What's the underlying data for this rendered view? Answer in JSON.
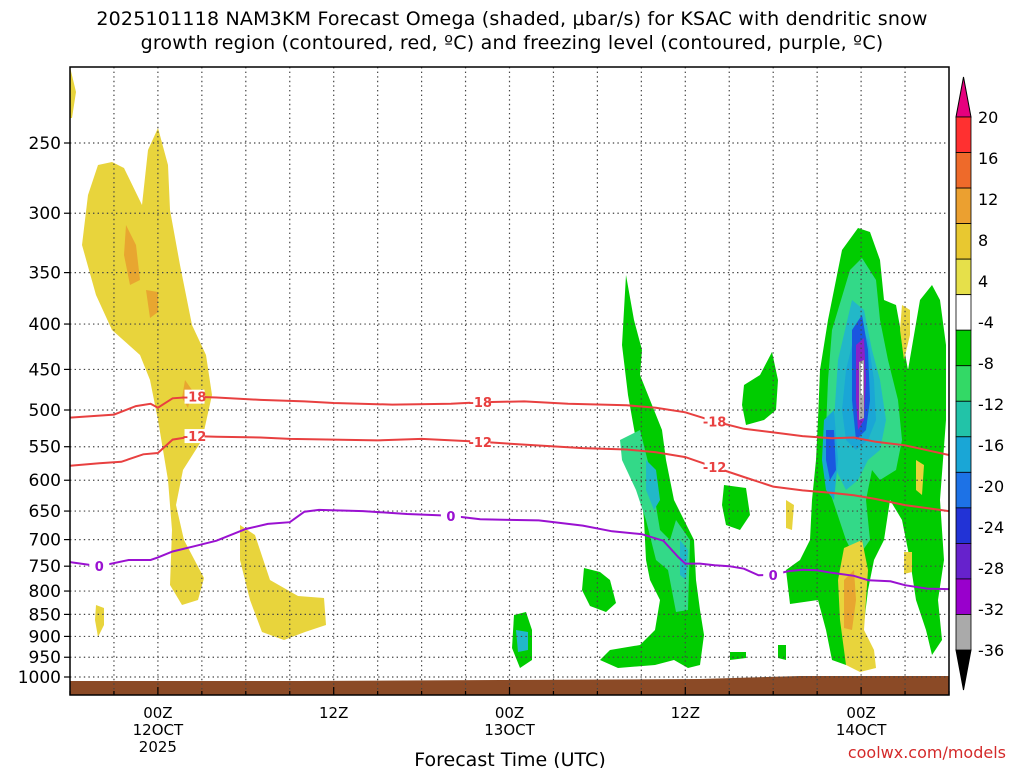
{
  "title": {
    "line1": "2025101118 NAM3KM Forecast Omega (shaded, μbar/s) for KSAC with dendritic snow",
    "line2": "growth region (contoured, red, ºC) and freezing level (contoured, purple, ºC)"
  },
  "credit": "coolwx.com/models",
  "chart_data": {
    "type": "time-height cross section",
    "title": "2025101118 NAM3KM Forecast Omega (shaded, μbar/s) for KSAC with dendritic snow growth region (contoured, red, ºC) and freezing level (contoured, purple, ºC)",
    "xlabel": "Forecast Time (UTC)",
    "ylabel": "",
    "x_range": [
      "2025-10-11 18Z",
      "2025-10-14 06Z"
    ],
    "y_scale": "log",
    "y_range": [
      1025,
      200
    ],
    "grid": true,
    "x_ticks": [
      {
        "hour": 6,
        "line1": "00Z",
        "line2": "12OCT",
        "line3": "2025"
      },
      {
        "hour": 18,
        "line1": "12Z",
        "line2": "",
        "line3": ""
      },
      {
        "hour": 30,
        "line1": "00Z",
        "line2": "13OCT",
        "line3": ""
      },
      {
        "hour": 42,
        "line1": "12Z",
        "line2": "",
        "line3": ""
      },
      {
        "hour": 54,
        "line1": "00Z",
        "line2": "14OCT",
        "line3": ""
      }
    ],
    "y_ticks": [
      250,
      300,
      350,
      400,
      450,
      500,
      550,
      600,
      650,
      700,
      750,
      800,
      850,
      900,
      950,
      1000
    ],
    "colorbar": {
      "labels": [
        20,
        16,
        12,
        8,
        4,
        -4,
        -8,
        -12,
        -16,
        -20,
        -24,
        -28,
        -32,
        -36
      ],
      "colors": [
        "#e6007e",
        "#ff3030",
        "#ee6a2a",
        "#eba030",
        "#e8c830",
        "#e6e04a",
        "#ffffff",
        "#00cc00",
        "#33d966",
        "#22c3a8",
        "#1aa6d6",
        "#1d72e6",
        "#2233d6",
        "#6622cc",
        "#9900cc",
        "#aaaaaa",
        "#000000"
      ]
    },
    "series": [
      {
        "name": "-18",
        "color": "#e84040",
        "points": [
          [
            0,
            510
          ],
          [
            3,
            506
          ],
          [
            4.5,
            495
          ],
          [
            5.5,
            492
          ],
          [
            6,
            497
          ],
          [
            7,
            485
          ],
          [
            8.5,
            483
          ],
          [
            10,
            484
          ],
          [
            13,
            487
          ],
          [
            16,
            489
          ],
          [
            18,
            491
          ],
          [
            22,
            493
          ],
          [
            26,
            492
          ],
          [
            28,
            490
          ],
          [
            31,
            489
          ],
          [
            34,
            492
          ],
          [
            38,
            494
          ],
          [
            40,
            497
          ],
          [
            42,
            503
          ],
          [
            44,
            515
          ],
          [
            46,
            525
          ],
          [
            48,
            530
          ],
          [
            50,
            535
          ],
          [
            52,
            538
          ],
          [
            53.5,
            537
          ],
          [
            55,
            543
          ],
          [
            57,
            548
          ],
          [
            60,
            562
          ]
        ]
      },
      {
        "name": "-12",
        "color": "#e84040",
        "points": [
          [
            0,
            578
          ],
          [
            2,
            574
          ],
          [
            3.5,
            572
          ],
          [
            5,
            561
          ],
          [
            6,
            559
          ],
          [
            7,
            540
          ],
          [
            8.5,
            535
          ],
          [
            10,
            536
          ],
          [
            13,
            537
          ],
          [
            15,
            539
          ],
          [
            18,
            540
          ],
          [
            21,
            541
          ],
          [
            24,
            539
          ],
          [
            28,
            543
          ],
          [
            31,
            547
          ],
          [
            35,
            552
          ],
          [
            38,
            554
          ],
          [
            40,
            558
          ],
          [
            42,
            565
          ],
          [
            44,
            580
          ],
          [
            46,
            595
          ],
          [
            48,
            610
          ],
          [
            50,
            616
          ],
          [
            52,
            620
          ],
          [
            53.5,
            624
          ],
          [
            55,
            630
          ],
          [
            57,
            640
          ],
          [
            60,
            650
          ]
        ]
      },
      {
        "name": "0",
        "color": "#9a11d1",
        "points": [
          [
            0,
            742
          ],
          [
            2,
            750
          ],
          [
            4,
            738
          ],
          [
            5.5,
            738
          ],
          [
            6,
            733
          ],
          [
            7,
            722
          ],
          [
            8.5,
            712
          ],
          [
            10,
            702
          ],
          [
            12,
            681
          ],
          [
            13.5,
            672
          ],
          [
            15,
            669
          ],
          [
            16,
            651
          ],
          [
            17,
            648
          ],
          [
            20,
            650
          ],
          [
            23,
            655
          ],
          [
            26,
            658
          ],
          [
            28,
            664
          ],
          [
            30,
            665
          ],
          [
            32,
            666
          ],
          [
            35,
            675
          ],
          [
            37,
            685
          ],
          [
            39,
            690
          ],
          [
            40.5,
            702
          ],
          [
            41.5,
            732
          ],
          [
            42,
            745
          ],
          [
            43,
            745
          ],
          [
            44,
            748
          ],
          [
            45,
            750
          ],
          [
            46,
            755
          ],
          [
            47,
            768
          ],
          [
            48,
            767
          ],
          [
            49,
            760
          ],
          [
            50,
            757
          ],
          [
            51,
            758
          ],
          [
            52,
            763
          ],
          [
            53.5,
            769
          ],
          [
            54.5,
            778
          ],
          [
            56,
            780
          ],
          [
            57,
            788
          ],
          [
            58.5,
            795
          ],
          [
            60,
            796
          ]
        ]
      }
    ]
  }
}
